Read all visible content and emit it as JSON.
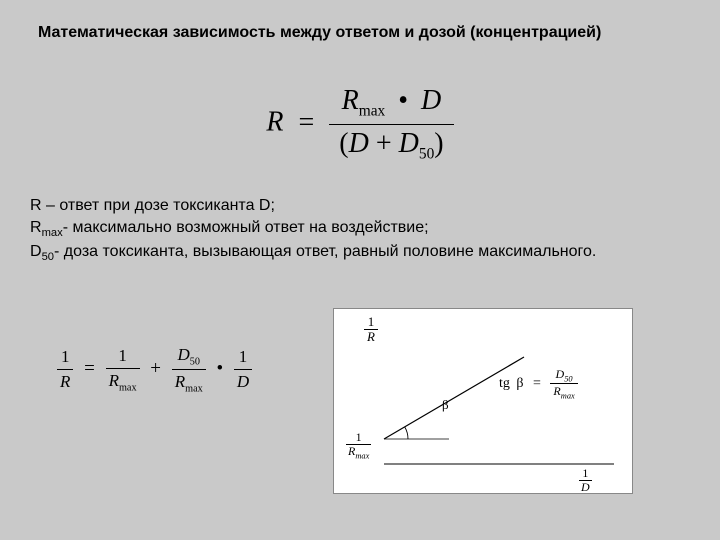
{
  "title": "Математическая зависимость между ответом и дозой (концентрацией)",
  "mainEq": {
    "lhs": "R",
    "numLeft": "R",
    "numSub": "max",
    "dot": "•",
    "numRight": "D",
    "denOpen": "(",
    "denA": "D",
    "denPlus": " + ",
    "denB": "D",
    "denBSub": "50",
    "denClose": ")"
  },
  "defs": {
    "l1a": "R – ответ при дозе токсиканта D;",
    "l2a": "R",
    "l2sub": "max",
    "l2b": "- максимально возможный ответ на воздействие;",
    "l3a": "D",
    "l3sub": "50",
    "l3b": "- доза токсиканта, вызывающая ответ, равный половине максимального."
  },
  "leftEq": {
    "f1n": "1",
    "f1d": "R",
    "eq": "=",
    "f2n": "1",
    "f2d": "R",
    "f2dsub": "max",
    "plus": "+",
    "f3n": "D",
    "f3nsub": "50",
    "f3d": "R",
    "f3dsub": "max",
    "dot": "•",
    "f4n": "1",
    "f4d": "D"
  },
  "graph": {
    "yNum": "1",
    "yDen": "R",
    "yIntNum": "1",
    "yIntDen": "R",
    "yIntSub": "max",
    "xNum": "1",
    "xDen": "D",
    "tgLabel": "tg",
    "betaSym": "β",
    "eqSym": "=",
    "tgNumA": "D",
    "tgNumSub": "50",
    "tgDenA": "R",
    "tgDenSub": "max",
    "axis": {
      "origin": [
        50,
        155
      ],
      "ytop": [
        50,
        15
      ],
      "xright": [
        280,
        155
      ],
      "lineStart": [
        50,
        130
      ],
      "lineEnd": [
        190,
        48
      ],
      "arcR": 24
    },
    "colors": {
      "bg": "#ffffff",
      "line": "#000000"
    }
  }
}
